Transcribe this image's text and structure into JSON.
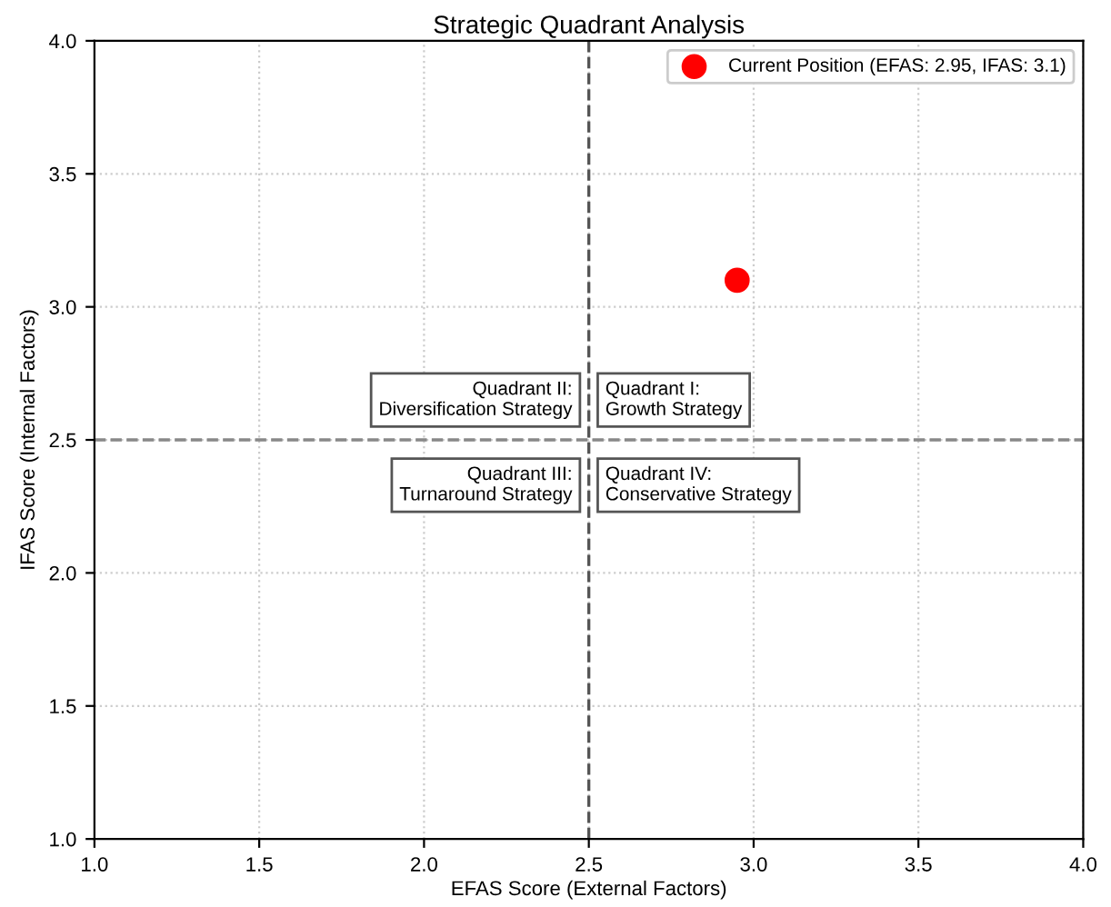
{
  "chart_data": {
    "type": "scatter",
    "title": "Strategic Quadrant Analysis",
    "xlabel": "EFAS Score (External Factors)",
    "ylabel": "IFAS Score (Internal Factors)",
    "x": [
      2.95
    ],
    "series": [
      {
        "name": "Current Position (EFAS: 2.95, IFAS: 3.1)",
        "color": "#ff0000",
        "values": [
          3.1
        ]
      }
    ],
    "marker": "circle",
    "xlim": [
      1.0,
      4.0
    ],
    "ylim": [
      1.0,
      4.0
    ],
    "xticks": [
      {
        "value": 1,
        "label": "1.0"
      },
      {
        "value": 1.5,
        "label": "1.5"
      },
      {
        "value": 2,
        "label": "2.0"
      },
      {
        "value": 2.5,
        "label": "2.5"
      },
      {
        "value": 3,
        "label": "3.0"
      },
      {
        "value": 3.5,
        "label": "3.5"
      },
      {
        "value": 4,
        "label": "4.0"
      }
    ],
    "yticks": [
      {
        "value": 1,
        "label": "1.0"
      },
      {
        "value": 1.5,
        "label": "1.5"
      },
      {
        "value": 2,
        "label": "2.0"
      },
      {
        "value": 2.5,
        "label": "2.5"
      },
      {
        "value": 3,
        "label": "3.0"
      },
      {
        "value": 3.5,
        "label": "3.5"
      },
      {
        "value": 4,
        "label": "4.0"
      }
    ],
    "ref_lines": [
      {
        "axis": "x",
        "value": 2.5,
        "color": "#555555",
        "line_style": "dashed"
      },
      {
        "axis": "y",
        "value": 2.5,
        "color": "#888888",
        "line_style": "dashed"
      }
    ],
    "annotations": [
      "Quadrant II:\nDiversification Strategy",
      "Quadrant I:\nGrowth Strategy",
      "Quadrant III:\nTurnaround Strategy",
      "Quadrant IV:\nConservative Strategy"
    ],
    "grid": true,
    "legend": "top right"
  }
}
